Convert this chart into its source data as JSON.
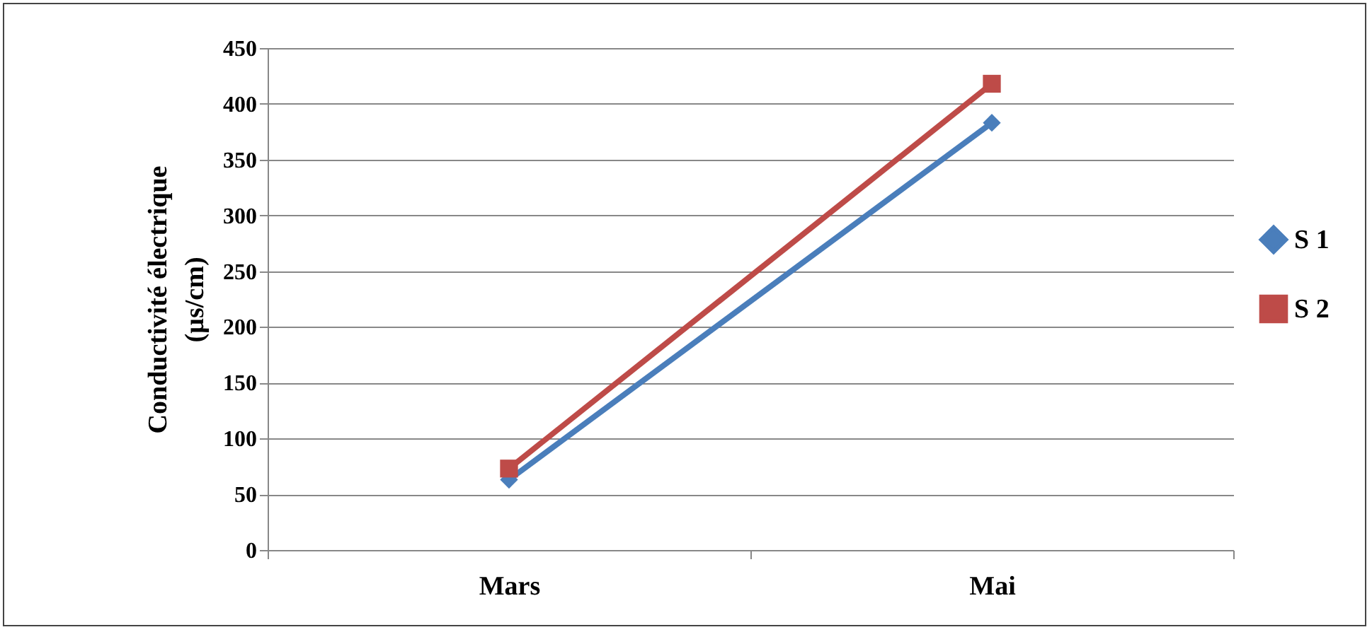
{
  "chart_data": {
    "type": "line",
    "ylabel": "Conductivité électrique (µs/cm)",
    "categories": [
      "Mars",
      "Mai"
    ],
    "series": [
      {
        "name": "S 1",
        "color": "#4a7ebb",
        "marker": "diamond",
        "values": [
          63,
          383
        ]
      },
      {
        "name": "S 2",
        "color": "#be4b48",
        "marker": "square",
        "values": [
          73,
          418
        ]
      }
    ],
    "ylim": [
      0,
      450
    ],
    "yticks": [
      0,
      50,
      100,
      150,
      200,
      250,
      300,
      350,
      400,
      450
    ],
    "grid": "y",
    "legend": "right"
  }
}
